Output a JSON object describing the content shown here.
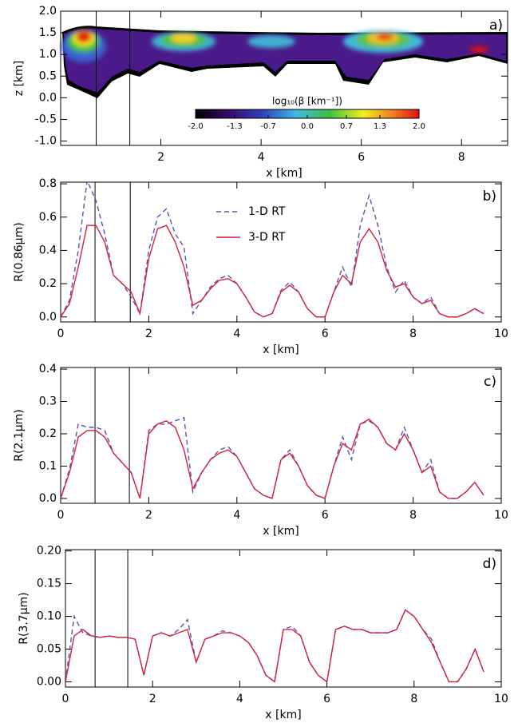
{
  "chart_data": [
    {
      "type": "contour",
      "xlabel": "x [km]",
      "ylabel": "z [km]",
      "panel_label": "a)",
      "xlim": [
        0,
        8.92
      ],
      "xticks": [
        2,
        4,
        6,
        8
      ],
      "ylim": [
        -1.1,
        2.0
      ],
      "yticks": [
        {
          "value": -1.0,
          "label": "-1.0"
        },
        -0.5,
        {
          "value": 0,
          "label": "0.0"
        },
        0.5,
        {
          "value": 1.0,
          "label": "1.0"
        },
        1.5,
        {
          "value": 2.0,
          "label": "2.0"
        }
      ],
      "vlines": [
        0.71,
        1.38
      ],
      "colorbar_label": "log₁₀(β [km⁻¹])",
      "clim": [
        -2.0,
        2.0
      ],
      "colorbar_ticks": [
        {
          "value": -2.0,
          "label": "-2.0"
        },
        -1.3,
        -0.7,
        {
          "value": 0,
          "label": "0.0"
        },
        0.7,
        1.3,
        {
          "value": 2.0,
          "label": "2.0"
        }
      ]
    },
    {
      "type": "line",
      "xlabel": "x [km]",
      "ylabel": "R(0.86µm)",
      "panel_label": "b)",
      "xlim": [
        0,
        10
      ],
      "xticks": [
        0,
        2,
        4,
        6,
        8,
        10
      ],
      "ylim": [
        -0.03,
        0.81
      ],
      "yticks": [
        {
          "value": 0,
          "label": "0.0"
        },
        0.2,
        0.4,
        0.6,
        0.8
      ],
      "vlines": [
        0.78,
        1.58
      ],
      "legend": true,
      "x": [
        0,
        0.2,
        0.4,
        0.6,
        0.8,
        1.0,
        1.2,
        1.4,
        1.6,
        1.8,
        2.0,
        2.2,
        2.4,
        2.6,
        2.8,
        3.0,
        3.2,
        3.4,
        3.6,
        3.8,
        4.0,
        4.2,
        4.4,
        4.6,
        4.8,
        5.0,
        5.2,
        5.4,
        5.6,
        5.8,
        6.0,
        6.2,
        6.4,
        6.6,
        6.8,
        7.0,
        7.2,
        7.4,
        7.6,
        7.8,
        8.0,
        8.2,
        8.4,
        8.6,
        8.8,
        9.0,
        9.2,
        9.4,
        9.6
      ],
      "series": [
        {
          "name": "1-D RT",
          "color": "#5555b5",
          "linestyle": "dashed",
          "values": [
            0.0,
            0.1,
            0.4,
            0.82,
            0.7,
            0.5,
            0.25,
            0.2,
            0.12,
            0.02,
            0.4,
            0.6,
            0.65,
            0.5,
            0.42,
            0.02,
            0.1,
            0.18,
            0.23,
            0.25,
            0.2,
            0.12,
            0.03,
            0.0,
            0.02,
            0.16,
            0.21,
            0.15,
            0.05,
            0.0,
            0.0,
            0.15,
            0.3,
            0.18,
            0.55,
            0.73,
            0.55,
            0.3,
            0.15,
            0.22,
            0.12,
            0.08,
            0.12,
            0.02,
            0.0,
            0.0,
            0.02,
            0.05,
            0.02
          ]
        },
        {
          "name": "3-D RT",
          "color": "#d4213d",
          "linestyle": "solid",
          "values": [
            0.0,
            0.08,
            0.3,
            0.55,
            0.55,
            0.45,
            0.25,
            0.2,
            0.15,
            0.02,
            0.35,
            0.53,
            0.55,
            0.45,
            0.3,
            0.07,
            0.1,
            0.17,
            0.22,
            0.23,
            0.2,
            0.12,
            0.03,
            0.0,
            0.02,
            0.15,
            0.19,
            0.15,
            0.05,
            0.0,
            0.0,
            0.15,
            0.25,
            0.2,
            0.45,
            0.53,
            0.45,
            0.28,
            0.18,
            0.2,
            0.12,
            0.08,
            0.1,
            0.02,
            0.0,
            0.0,
            0.02,
            0.05,
            0.02
          ]
        }
      ]
    },
    {
      "type": "line",
      "xlabel": "x [km]",
      "ylabel": "R(2.1µm)",
      "panel_label": "c)",
      "xlim": [
        0,
        10
      ],
      "xticks": [
        0,
        2,
        4,
        6,
        8,
        10
      ],
      "ylim": [
        -0.015,
        0.405
      ],
      "yticks": [
        {
          "value": 0,
          "label": "0.0"
        },
        0.1,
        0.2,
        0.3,
        0.4
      ],
      "vlines": [
        0.78,
        1.56
      ],
      "x": [
        0,
        0.2,
        0.4,
        0.6,
        0.8,
        1.0,
        1.2,
        1.4,
        1.6,
        1.8,
        2.0,
        2.2,
        2.4,
        2.6,
        2.8,
        3.0,
        3.2,
        3.4,
        3.6,
        3.8,
        4.0,
        4.2,
        4.4,
        4.6,
        4.8,
        5.0,
        5.2,
        5.4,
        5.6,
        5.8,
        6.0,
        6.2,
        6.4,
        6.6,
        6.8,
        7.0,
        7.2,
        7.4,
        7.6,
        7.8,
        8.0,
        8.2,
        8.4,
        8.6,
        8.8,
        9.0,
        9.2,
        9.4,
        9.6
      ],
      "series": [
        {
          "name": "1-D RT",
          "color": "#5555b5",
          "linestyle": "dashed",
          "values": [
            0.0,
            0.09,
            0.23,
            0.22,
            0.22,
            0.21,
            0.14,
            0.11,
            0.08,
            0.0,
            0.21,
            0.23,
            0.23,
            0.24,
            0.25,
            0.02,
            0.08,
            0.12,
            0.15,
            0.16,
            0.13,
            0.08,
            0.03,
            0.01,
            0.0,
            0.12,
            0.15,
            0.1,
            0.04,
            0.01,
            0.0,
            0.1,
            0.19,
            0.12,
            0.23,
            0.24,
            0.22,
            0.17,
            0.15,
            0.22,
            0.15,
            0.08,
            0.12,
            0.02,
            0.0,
            0.0,
            0.02,
            0.05,
            0.01
          ]
        },
        {
          "name": "3-D RT",
          "color": "#d4213d",
          "linestyle": "solid",
          "values": [
            0.0,
            0.08,
            0.19,
            0.21,
            0.21,
            0.19,
            0.14,
            0.11,
            0.08,
            0.0,
            0.2,
            0.23,
            0.24,
            0.22,
            0.15,
            0.03,
            0.08,
            0.12,
            0.14,
            0.15,
            0.13,
            0.08,
            0.03,
            0.01,
            0.0,
            0.12,
            0.14,
            0.1,
            0.04,
            0.01,
            0.0,
            0.1,
            0.17,
            0.15,
            0.23,
            0.245,
            0.22,
            0.17,
            0.15,
            0.2,
            0.15,
            0.08,
            0.1,
            0.02,
            0.0,
            0.0,
            0.02,
            0.05,
            0.01
          ]
        }
      ]
    },
    {
      "type": "line",
      "xlabel": "x [km]",
      "ylabel": "R(3.7µm)",
      "panel_label": "d)",
      "xlim": [
        0,
        10
      ],
      "xticks": [
        0,
        2,
        4,
        6,
        8,
        10
      ],
      "ylim": [
        -0.008,
        0.202
      ],
      "yticks": [
        {
          "value": 0,
          "label": "0.00"
        },
        0.05,
        {
          "value": 0.1,
          "label": "0.10"
        },
        0.15,
        {
          "value": 0.2,
          "label": "0.20"
        }
      ],
      "vlines": [
        0.68,
        1.43
      ],
      "x": [
        0,
        0.2,
        0.4,
        0.6,
        0.8,
        1.0,
        1.2,
        1.4,
        1.6,
        1.8,
        2.0,
        2.2,
        2.4,
        2.6,
        2.8,
        3.0,
        3.2,
        3.4,
        3.6,
        3.8,
        4.0,
        4.2,
        4.4,
        4.6,
        4.8,
        5.0,
        5.2,
        5.4,
        5.6,
        5.8,
        6.0,
        6.2,
        6.4,
        6.6,
        6.8,
        7.0,
        7.2,
        7.4,
        7.6,
        7.8,
        8.0,
        8.2,
        8.4,
        8.6,
        8.8,
        9.0,
        9.2,
        9.4,
        9.6
      ],
      "series": [
        {
          "name": "1-D RT",
          "color": "#5555b5",
          "linestyle": "dashed",
          "values": [
            0.0,
            0.1,
            0.075,
            0.07,
            0.068,
            0.07,
            0.068,
            0.068,
            0.065,
            0.01,
            0.07,
            0.075,
            0.07,
            0.08,
            0.095,
            0.03,
            0.065,
            0.07,
            0.078,
            0.075,
            0.07,
            0.06,
            0.04,
            0.01,
            0.0,
            0.08,
            0.085,
            0.07,
            0.03,
            0.01,
            0.0,
            0.08,
            0.085,
            0.08,
            0.08,
            0.075,
            0.075,
            0.075,
            0.08,
            0.11,
            0.1,
            0.08,
            0.065,
            0.03,
            0.0,
            0.0,
            0.02,
            0.05,
            0.015
          ]
        },
        {
          "name": "3-D RT",
          "color": "#d4213d",
          "linestyle": "solid",
          "values": [
            0.0,
            0.07,
            0.08,
            0.07,
            0.068,
            0.07,
            0.068,
            0.068,
            0.065,
            0.01,
            0.07,
            0.075,
            0.07,
            0.075,
            0.08,
            0.03,
            0.065,
            0.07,
            0.075,
            0.075,
            0.07,
            0.06,
            0.04,
            0.01,
            0.0,
            0.08,
            0.08,
            0.07,
            0.03,
            0.01,
            0.0,
            0.08,
            0.085,
            0.08,
            0.08,
            0.075,
            0.075,
            0.075,
            0.08,
            0.11,
            0.1,
            0.08,
            0.06,
            0.03,
            0.0,
            0.0,
            0.02,
            0.05,
            0.015
          ]
        }
      ]
    }
  ]
}
